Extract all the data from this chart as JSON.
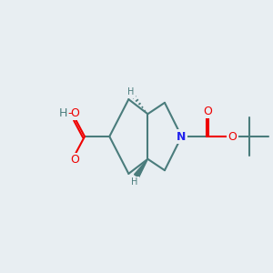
{
  "bg": "#e8eef2",
  "bc": "#4a7c7c",
  "nc": "#2222ee",
  "oc": "#ee0000",
  "hc": "#4a7c7c",
  "lw": 1.5,
  "figsize": [
    3.0,
    3.0
  ],
  "dpi": 100,
  "xlim": [
    -1,
    11
  ],
  "ylim": [
    -1,
    11
  ]
}
